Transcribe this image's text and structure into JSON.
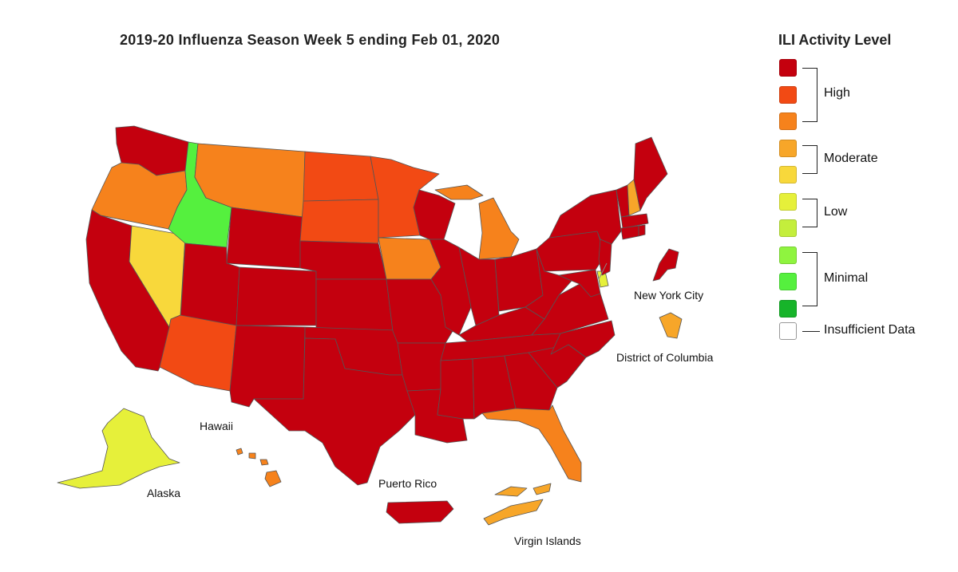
{
  "title": "2019-20 Influenza Season Week 5 ending Feb 01, 2020",
  "legend": {
    "title": "ILI Activity Level",
    "levels": [
      {
        "color": "#c4000e"
      },
      {
        "color": "#f24a14"
      },
      {
        "color": "#f6821c"
      },
      {
        "color": "#f7a629"
      },
      {
        "color": "#f8d83b"
      },
      {
        "color": "#e6f03a"
      },
      {
        "color": "#c4ee3c"
      },
      {
        "color": "#8ff43f"
      },
      {
        "color": "#55f03e"
      },
      {
        "color": "#17b42a"
      }
    ],
    "groups": [
      "High",
      "Moderate",
      "Low",
      "Minimal"
    ],
    "insufficient": "Insufficient Data"
  },
  "labels": {
    "new_york_city": "New York City",
    "district_of_columbia": "District of Columbia",
    "hawaii": "Hawaii",
    "alaska": "Alaska",
    "puerto_rico": "Puerto Rico",
    "virgin_islands": "Virgin Islands"
  },
  "map_colors": {
    "high10": "#c4000e",
    "high9": "#f24a14",
    "high8": "#f6821c",
    "moderate7": "#f7a629",
    "moderate6": "#f8d83b",
    "low5": "#e6f03a",
    "minimal2": "#55f03e",
    "border": "#555555"
  },
  "region_levels": [
    {
      "region": "Washington",
      "level": 10
    },
    {
      "region": "Oregon",
      "level": 8
    },
    {
      "region": "California",
      "level": 10
    },
    {
      "region": "Nevada",
      "level": 6
    },
    {
      "region": "Idaho",
      "level": 2
    },
    {
      "region": "Montana",
      "level": 8
    },
    {
      "region": "Wyoming",
      "level": 10
    },
    {
      "region": "Utah",
      "level": 10
    },
    {
      "region": "Arizona",
      "level": 9
    },
    {
      "region": "Colorado",
      "level": 10
    },
    {
      "region": "New Mexico",
      "level": 10
    },
    {
      "region": "North Dakota",
      "level": 9
    },
    {
      "region": "South Dakota",
      "level": 9
    },
    {
      "region": "Nebraska",
      "level": 10
    },
    {
      "region": "Kansas",
      "level": 10
    },
    {
      "region": "Oklahoma",
      "level": 10
    },
    {
      "region": "Texas",
      "level": 10
    },
    {
      "region": "Minnesota",
      "level": 9
    },
    {
      "region": "Iowa",
      "level": 8
    },
    {
      "region": "Missouri",
      "level": 10
    },
    {
      "region": "Arkansas",
      "level": 10
    },
    {
      "region": "Louisiana",
      "level": 10
    },
    {
      "region": "Wisconsin",
      "level": 10
    },
    {
      "region": "Illinois",
      "level": 10
    },
    {
      "region": "Michigan",
      "level": 8
    },
    {
      "region": "Indiana",
      "level": 10
    },
    {
      "region": "Ohio",
      "level": 10
    },
    {
      "region": "Kentucky",
      "level": 10
    },
    {
      "region": "Tennessee",
      "level": 10
    },
    {
      "region": "Mississippi",
      "level": 10
    },
    {
      "region": "Alabama",
      "level": 10
    },
    {
      "region": "Georgia",
      "level": 10
    },
    {
      "region": "Florida",
      "level": 8
    },
    {
      "region": "South Carolina",
      "level": 10
    },
    {
      "region": "North Carolina",
      "level": 10
    },
    {
      "region": "Virginia",
      "level": 10
    },
    {
      "region": "West Virginia",
      "level": 10
    },
    {
      "region": "Maryland",
      "level": 10
    },
    {
      "region": "Delaware",
      "level": 5
    },
    {
      "region": "Pennsylvania",
      "level": 10
    },
    {
      "region": "New Jersey",
      "level": 10
    },
    {
      "region": "New York",
      "level": 10
    },
    {
      "region": "Connecticut",
      "level": 10
    },
    {
      "region": "Rhode Island",
      "level": 10
    },
    {
      "region": "Massachusetts",
      "level": 10
    },
    {
      "region": "Vermont",
      "level": 10
    },
    {
      "region": "New Hampshire",
      "level": 7
    },
    {
      "region": "Maine",
      "level": 10
    },
    {
      "region": "New York City",
      "level": 10
    },
    {
      "region": "District of Columbia",
      "level": 7
    },
    {
      "region": "Alaska",
      "level": 5
    },
    {
      "region": "Hawaii",
      "level": 8
    },
    {
      "region": "Puerto Rico",
      "level": 10
    },
    {
      "region": "Virgin Islands",
      "level": 7
    }
  ]
}
